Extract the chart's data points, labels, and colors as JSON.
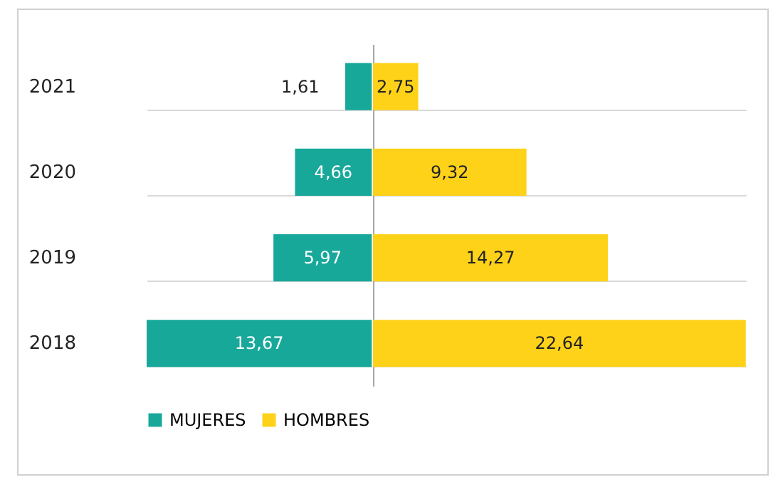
{
  "chart_data": [
    {
      "type": "bar",
      "orientation": "horizontal",
      "categories": [
        "2021",
        "2020",
        "2019",
        "2018"
      ],
      "series": [
        {
          "name": "MUJERES",
          "color": "#17a89a",
          "values": [
            1.61,
            4.66,
            5.97,
            13.67
          ],
          "value_labels": [
            "1,61",
            "4,66",
            "5,97",
            "13,67"
          ]
        }
      ],
      "grid": "y",
      "legend": "bottom",
      "tick_labels": "y"
    },
    {
      "type": "bar",
      "orientation": "horizontal",
      "categories": [
        "2021",
        "2020",
        "2019",
        "2018"
      ],
      "series": [
        {
          "name": "HOMBRES",
          "color": "#ffd21a",
          "values": [
            2.75,
            9.32,
            14.27,
            22.64
          ],
          "value_labels": [
            "2,75",
            "9,32",
            "14,27",
            "22,64"
          ]
        }
      ],
      "grid": "y",
      "legend": "bottom",
      "tick_labels": false
    }
  ]
}
